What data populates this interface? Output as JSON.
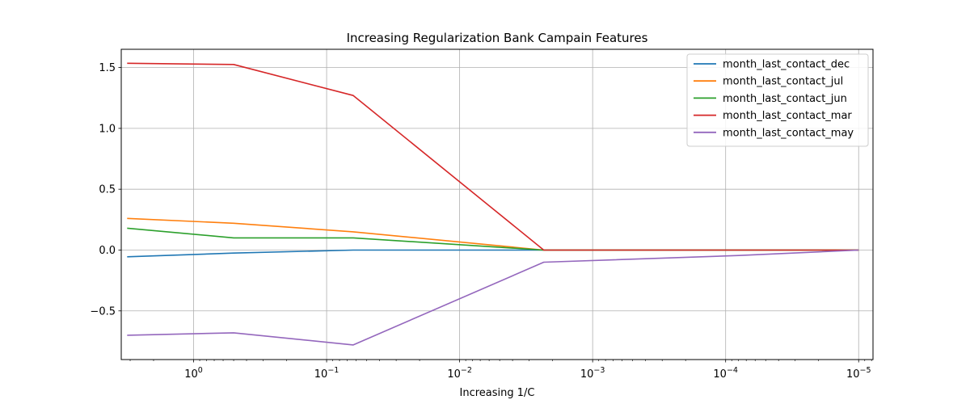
{
  "chart_data": {
    "type": "line",
    "title": "Increasing Regularization Bank Campain Features",
    "xlabel": "Increasing 1/C",
    "ylabel": "",
    "x_scale": "log",
    "x_reversed": true,
    "xlim": [
      3.5,
      7.8e-06
    ],
    "ylim": [
      -0.9,
      1.65
    ],
    "grid": true,
    "legend_position": "upper right",
    "x": [
      3.16,
      0.5,
      0.0631,
      0.00233,
      7.94e-05,
      1e-05
    ],
    "x_ticks": [
      {
        "value": 1,
        "base": "10",
        "exp": "0"
      },
      {
        "value": 0.1,
        "base": "10",
        "exp": "−1"
      },
      {
        "value": 0.01,
        "base": "10",
        "exp": "−2"
      },
      {
        "value": 0.001,
        "base": "10",
        "exp": "−3"
      },
      {
        "value": 0.0001,
        "base": "10",
        "exp": "−4"
      },
      {
        "value": 1e-05,
        "base": "10",
        "exp": "−5"
      }
    ],
    "y_ticks": [
      {
        "value": 1.5,
        "label": "1.5"
      },
      {
        "value": 1.0,
        "label": "1.0"
      },
      {
        "value": 0.5,
        "label": "0.5"
      },
      {
        "value": 0.0,
        "label": "0.0"
      },
      {
        "value": -0.5,
        "label": "−0.5"
      }
    ],
    "series": [
      {
        "name": "month_last_contact_dec",
        "color": "#1f77b4",
        "values": [
          -0.055,
          -0.025,
          0.0,
          0.0,
          0.0,
          0.0
        ]
      },
      {
        "name": "month_last_contact_jul",
        "color": "#ff7f0e",
        "values": [
          0.26,
          0.22,
          0.15,
          0.0,
          0.0,
          0.0
        ]
      },
      {
        "name": "month_last_contact_jun",
        "color": "#2ca02c",
        "values": [
          0.18,
          0.1,
          0.1,
          0.0,
          0.0,
          0.0
        ]
      },
      {
        "name": "month_last_contact_mar",
        "color": "#d62728",
        "values": [
          1.535,
          1.525,
          1.27,
          0.0,
          0.0,
          0.0
        ]
      },
      {
        "name": "month_last_contact_may",
        "color": "#9467bd",
        "values": [
          -0.7,
          -0.68,
          -0.78,
          -0.1,
          -0.045,
          0.0
        ]
      }
    ]
  }
}
